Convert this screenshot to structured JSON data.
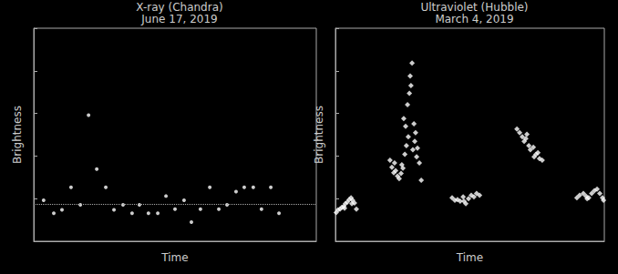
{
  "chart_data": [
    {
      "type": "scatter",
      "title": "X-ray (Chandra)",
      "subtitle": "June 17, 2019",
      "x_label": "Time",
      "y_label": "Brightness",
      "x": [
        0.35,
        0.71,
        1.0,
        1.32,
        1.65,
        1.94,
        2.23,
        2.55,
        2.84,
        3.16,
        3.48,
        3.74,
        4.06,
        4.39,
        4.68,
        5.0,
        5.32,
        5.58,
        5.9,
        6.23,
        6.55,
        6.84,
        7.16,
        7.45,
        7.77,
        8.06,
        8.39,
        8.68
      ],
      "values": [
        1.92,
        1.31,
        1.47,
        2.53,
        1.71,
        5.92,
        3.39,
        2.53,
        1.47,
        1.71,
        1.31,
        1.71,
        1.31,
        1.31,
        2.12,
        1.51,
        1.92,
        0.9,
        1.51,
        2.53,
        1.51,
        1.71,
        2.33,
        2.53,
        2.53,
        1.51,
        2.53,
        1.31
      ],
      "baseline": 1.76,
      "color": "#ffffff",
      "marker": "circle",
      "xlim": [
        0,
        10
      ],
      "ylim": [
        0,
        10
      ],
      "yticks": [
        0,
        2,
        4,
        6,
        8,
        10
      ],
      "tick_labels": false,
      "grid": false
    },
    {
      "type": "scatter",
      "title": "Ultraviolet (Hubble)",
      "subtitle": "March 4, 2019",
      "x_label": "Time",
      "y_label": "Brightness",
      "x": [
        0.03,
        0.1,
        0.17,
        0.24,
        0.31,
        0.37,
        0.44,
        0.51,
        0.58,
        0.64,
        0.71,
        0.78,
        0.34,
        0.61,
        2.03,
        2.1,
        2.17,
        2.2,
        2.24,
        2.31,
        2.37,
        2.44,
        2.47,
        2.51,
        2.54,
        2.58,
        2.61,
        2.64,
        2.68,
        2.71,
        2.75,
        2.78,
        2.81,
        2.85,
        2.88,
        2.92,
        2.95,
        2.98,
        3.02,
        3.05,
        3.12,
        3.19,
        4.34,
        4.44,
        4.54,
        4.64,
        4.75,
        4.78,
        4.85,
        4.95,
        5.05,
        5.15,
        5.25,
        5.36,
        6.75,
        6.85,
        6.95,
        7.02,
        7.08,
        7.12,
        7.19,
        7.25,
        7.36,
        7.39,
        7.46,
        7.53,
        7.59,
        7.69,
        8.98,
        9.08,
        9.22,
        9.32,
        9.36,
        9.42,
        9.53,
        9.63,
        9.73,
        9.83,
        9.93,
        9.97
      ],
      "values": [
        1.35,
        1.47,
        1.51,
        1.59,
        1.63,
        1.76,
        1.84,
        1.96,
        2.04,
        1.92,
        1.8,
        1.51,
        1.55,
        1.76,
        3.8,
        3.47,
        3.22,
        3.67,
        3.31,
        3.06,
        2.94,
        3.18,
        3.59,
        3.43,
        5.76,
        4.08,
        5.39,
        4.49,
        6.41,
        4.9,
        6.94,
        7.76,
        7.31,
        8.37,
        4.29,
        5.51,
        4.69,
        5.1,
        3.96,
        4.37,
        3.67,
        2.86,
        2.04,
        1.92,
        1.96,
        1.88,
        2.08,
        1.88,
        1.76,
        2.0,
        2.16,
        2.08,
        2.24,
        2.16,
        5.27,
        5.1,
        4.9,
        4.69,
        4.82,
        5.02,
        4.49,
        4.29,
        4.41,
        3.96,
        4.08,
        4.16,
        3.88,
        3.8,
        2.04,
        2.16,
        2.24,
        2.12,
        2.0,
        2.04,
        2.24,
        2.37,
        2.45,
        2.24,
        2.04,
        1.92
      ],
      "color": "#ffffff",
      "marker": "diamond",
      "xlim": [
        0,
        10
      ],
      "ylim": [
        0,
        10
      ],
      "yticks": [
        0,
        2,
        4,
        6,
        8,
        10
      ],
      "tick_labels": false,
      "grid": false
    }
  ]
}
